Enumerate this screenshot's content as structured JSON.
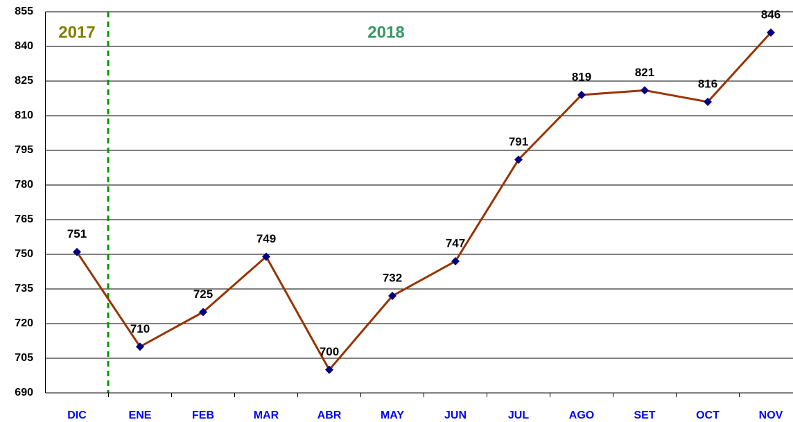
{
  "chart_data": {
    "type": "line",
    "annotations": [
      "2017",
      "2018"
    ],
    "categories": [
      "DIC",
      "ENE",
      "FEB",
      "MAR",
      "ABR",
      "MAY",
      "JUN",
      "JUL",
      "AGO",
      "SET",
      "OCT",
      "NOV"
    ],
    "series": [
      {
        "color": "#993300",
        "marker_color": "#000080",
        "values": [
          751,
          710,
          725,
          749,
          700,
          732,
          747,
          791,
          819,
          821,
          816,
          846
        ]
      }
    ],
    "ylim": [
      690,
      855
    ],
    "yticks": [
      690,
      705,
      720,
      735,
      750,
      765,
      780,
      795,
      810,
      825,
      840,
      855
    ],
    "grid": true
  }
}
